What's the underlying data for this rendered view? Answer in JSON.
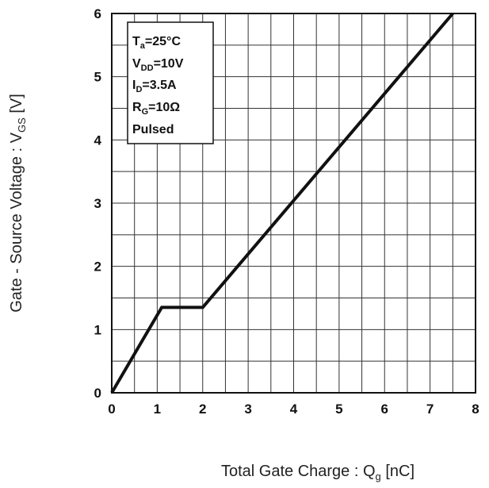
{
  "chart_data": {
    "type": "line",
    "xlabel_main": "Total Gate Charge : Q",
    "xlabel_sub": "g",
    "xlabel_unit": " [nC]",
    "ylabel_main": "Gate - Source Voltage : V",
    "ylabel_sub": "GS",
    "ylabel_unit": " [V]",
    "xlim": [
      0,
      8
    ],
    "ylim": [
      0,
      6
    ],
    "x_ticks": [
      "0",
      "1",
      "2",
      "3",
      "4",
      "5",
      "6",
      "7",
      "8"
    ],
    "y_ticks": [
      "0",
      "1",
      "2",
      "3",
      "4",
      "5",
      "6"
    ],
    "x_minor_step": 0.5,
    "y_minor_step": 0.5,
    "grid": true,
    "series": [
      {
        "x": [
          0,
          1.1,
          2.0,
          7.5
        ],
        "y": [
          0,
          1.35,
          1.35,
          6.0
        ],
        "color": "#111111"
      }
    ],
    "conditions": {
      "ta": {
        "main": "T",
        "sub": "a",
        "rest": "=25°C"
      },
      "vdd": {
        "main": "V",
        "sub": "DD",
        "rest": "=10V"
      },
      "id": {
        "main": "I",
        "sub": "D",
        "rest": "=3.5A"
      },
      "rg": {
        "main": "R",
        "sub": "G",
        "rest": "=10Ω"
      },
      "mode": "Pulsed"
    }
  }
}
